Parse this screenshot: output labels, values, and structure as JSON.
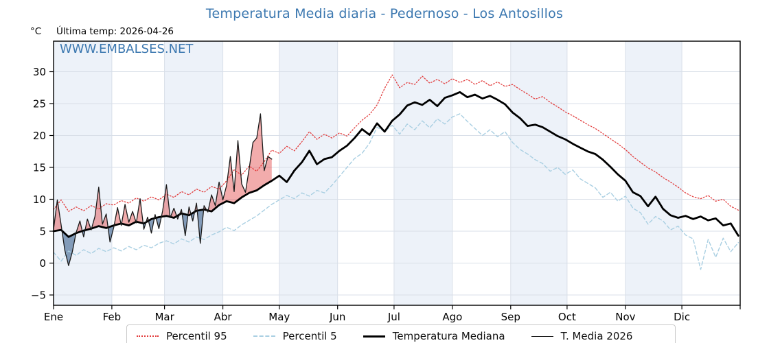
{
  "title": "Temperatura Media diaria - Pedernoso - Los Antosillos",
  "y_axis_unit": "°C",
  "last_temp_label": "Última temp: 2026-04-26",
  "watermark": "WWW.EMBALSES.NET",
  "colors": {
    "title_blue": "#3c78b0",
    "band": "#edf2f9",
    "grid": "#d9dfe8",
    "spine": "#000000"
  },
  "chart_data": {
    "type": "line",
    "title": "Temperatura Media diaria - Pedernoso - Los Antosillos",
    "xlabel": "",
    "ylabel": "°C",
    "x_tick_labels": [
      "Ene",
      "Feb",
      "Mar",
      "Abr",
      "May",
      "Jun",
      "Jul",
      "Ago",
      "Sep",
      "Oct",
      "Nov",
      "Dic"
    ],
    "month_boundaries": [
      0,
      31,
      59,
      90,
      120,
      151,
      181,
      212,
      243,
      273,
      304,
      334,
      365
    ],
    "y_ticks": [
      -5,
      0,
      5,
      10,
      15,
      20,
      25,
      30
    ],
    "ylim": [
      -6.5,
      34.5
    ],
    "xlim_days": [
      0,
      365
    ],
    "grid": true,
    "legend_position": "bottom",
    "fills": {
      "above_color": "rgba(226,72,72,0.45)",
      "below_color": "rgba(93,125,163,0.75)",
      "description": "T. Media 2026 vs mediana: rojo por encima, azul por debajo"
    },
    "series": [
      {
        "name": "Percentil 95",
        "style": "dotted",
        "color": "#e23b3b",
        "width": 1.3,
        "sample_step_days": 4,
        "values": [
          8.4,
          9.9,
          8.1,
          8.8,
          8.2,
          9.0,
          8.5,
          9.3,
          9.1,
          9.8,
          9.4,
          10.2,
          9.7,
          10.4,
          9.9,
          10.8,
          10.3,
          11.2,
          10.7,
          11.6,
          11.1,
          12.0,
          11.6,
          12.9,
          14.6,
          13.8,
          15.2,
          14.4,
          15.9,
          17.7,
          17.2,
          18.3,
          17.6,
          19.0,
          20.6,
          19.4,
          20.2,
          19.6,
          20.4,
          19.9,
          21.2,
          22.4,
          23.3,
          24.8,
          27.4,
          29.5,
          27.5,
          28.3,
          28.0,
          29.3,
          28.2,
          28.8,
          28.1,
          28.9,
          28.3,
          28.8,
          28.0,
          28.6,
          27.8,
          28.4,
          27.7,
          28.0,
          27.2,
          26.5,
          25.7,
          26.1,
          25.2,
          24.5,
          23.7,
          23.1,
          22.4,
          21.7,
          21.1,
          20.3,
          19.5,
          18.7,
          17.8,
          16.7,
          15.8,
          14.9,
          14.3,
          13.4,
          12.7,
          11.9,
          11.0,
          10.4,
          10.1,
          10.6,
          9.7,
          10.0,
          8.9,
          8.3
        ]
      },
      {
        "name": "Percentil 5",
        "style": "dashed",
        "color": "#a9cfe2",
        "width": 1.4,
        "sample_step_days": 4,
        "values": [
          1.7,
          0.3,
          1.9,
          1.2,
          2.1,
          1.5,
          2.3,
          1.8,
          2.4,
          1.9,
          2.6,
          2.1,
          2.8,
          2.4,
          3.1,
          3.5,
          3.0,
          3.8,
          3.3,
          4.1,
          3.7,
          4.4,
          4.9,
          5.6,
          5.1,
          6.0,
          6.7,
          7.4,
          8.3,
          9.2,
          9.9,
          10.6,
          10.1,
          11.0,
          10.5,
          11.4,
          11.0,
          12.2,
          13.6,
          15.0,
          16.4,
          17.2,
          18.8,
          21.3,
          20.6,
          21.6,
          20.2,
          21.8,
          20.9,
          22.3,
          21.2,
          22.6,
          21.8,
          22.9,
          23.4,
          22.2,
          21.1,
          20.0,
          20.9,
          19.8,
          20.6,
          18.9,
          17.8,
          17.1,
          16.2,
          15.6,
          14.4,
          15.0,
          13.9,
          14.6,
          13.2,
          12.5,
          11.8,
          10.3,
          11.1,
          9.7,
          10.5,
          8.6,
          7.9,
          6.1,
          7.3,
          6.6,
          5.2,
          5.8,
          4.4,
          3.8,
          -1.0,
          3.7,
          0.9,
          3.9,
          1.8,
          3.2
        ]
      },
      {
        "name": "Temperatura Mediana",
        "style": "solid",
        "color": "#000000",
        "width": 2.8,
        "sample_step_days": 4,
        "values": [
          5.0,
          5.2,
          4.1,
          4.7,
          5.1,
          5.4,
          5.8,
          5.5,
          5.9,
          6.2,
          5.9,
          6.5,
          6.2,
          6.9,
          7.2,
          7.4,
          7.1,
          7.8,
          7.5,
          8.2,
          8.4,
          8.1,
          9.1,
          9.7,
          9.4,
          10.3,
          11.0,
          11.4,
          12.2,
          12.9,
          13.7,
          12.7,
          14.5,
          15.8,
          17.6,
          15.5,
          16.3,
          16.6,
          17.6,
          18.4,
          19.6,
          21.0,
          20.1,
          21.9,
          20.6,
          22.3,
          23.3,
          24.7,
          25.2,
          24.8,
          25.6,
          24.6,
          25.9,
          26.3,
          26.8,
          26.0,
          26.4,
          25.8,
          26.2,
          25.6,
          24.9,
          23.6,
          22.7,
          21.5,
          21.7,
          21.3,
          20.6,
          19.9,
          19.4,
          18.7,
          18.1,
          17.5,
          17.1,
          16.2,
          15.1,
          13.9,
          12.9,
          11.1,
          10.5,
          8.9,
          10.4,
          8.5,
          7.5,
          7.1,
          7.4,
          6.9,
          7.3,
          6.7,
          7.0,
          5.9,
          6.2,
          4.3
        ]
      },
      {
        "name": "T. Media 2026",
        "style": "solid",
        "color": "#1a1a1a",
        "width": 1.3,
        "sample_step_days": 2,
        "last_day": 116,
        "values": [
          5.3,
          9.9,
          6.0,
          2.0,
          -0.4,
          1.8,
          4.8,
          6.6,
          4.1,
          6.9,
          5.2,
          7.3,
          11.9,
          6.1,
          7.7,
          3.3,
          5.6,
          8.7,
          5.9,
          9.2,
          6.4,
          8.1,
          6.3,
          10.1,
          5.3,
          7.2,
          4.7,
          7.6,
          5.4,
          8.2,
          12.3,
          7.1,
          8.6,
          6.9,
          8.4,
          4.3,
          8.8,
          6.6,
          9.4,
          3.1,
          9.0,
          8.0,
          10.7,
          9.0,
          12.7,
          9.9,
          12.2,
          16.7,
          11.2,
          19.2,
          12.4,
          11.1,
          14.8,
          18.9,
          19.6,
          23.4,
          14.5,
          16.7,
          16.3
        ]
      }
    ]
  }
}
